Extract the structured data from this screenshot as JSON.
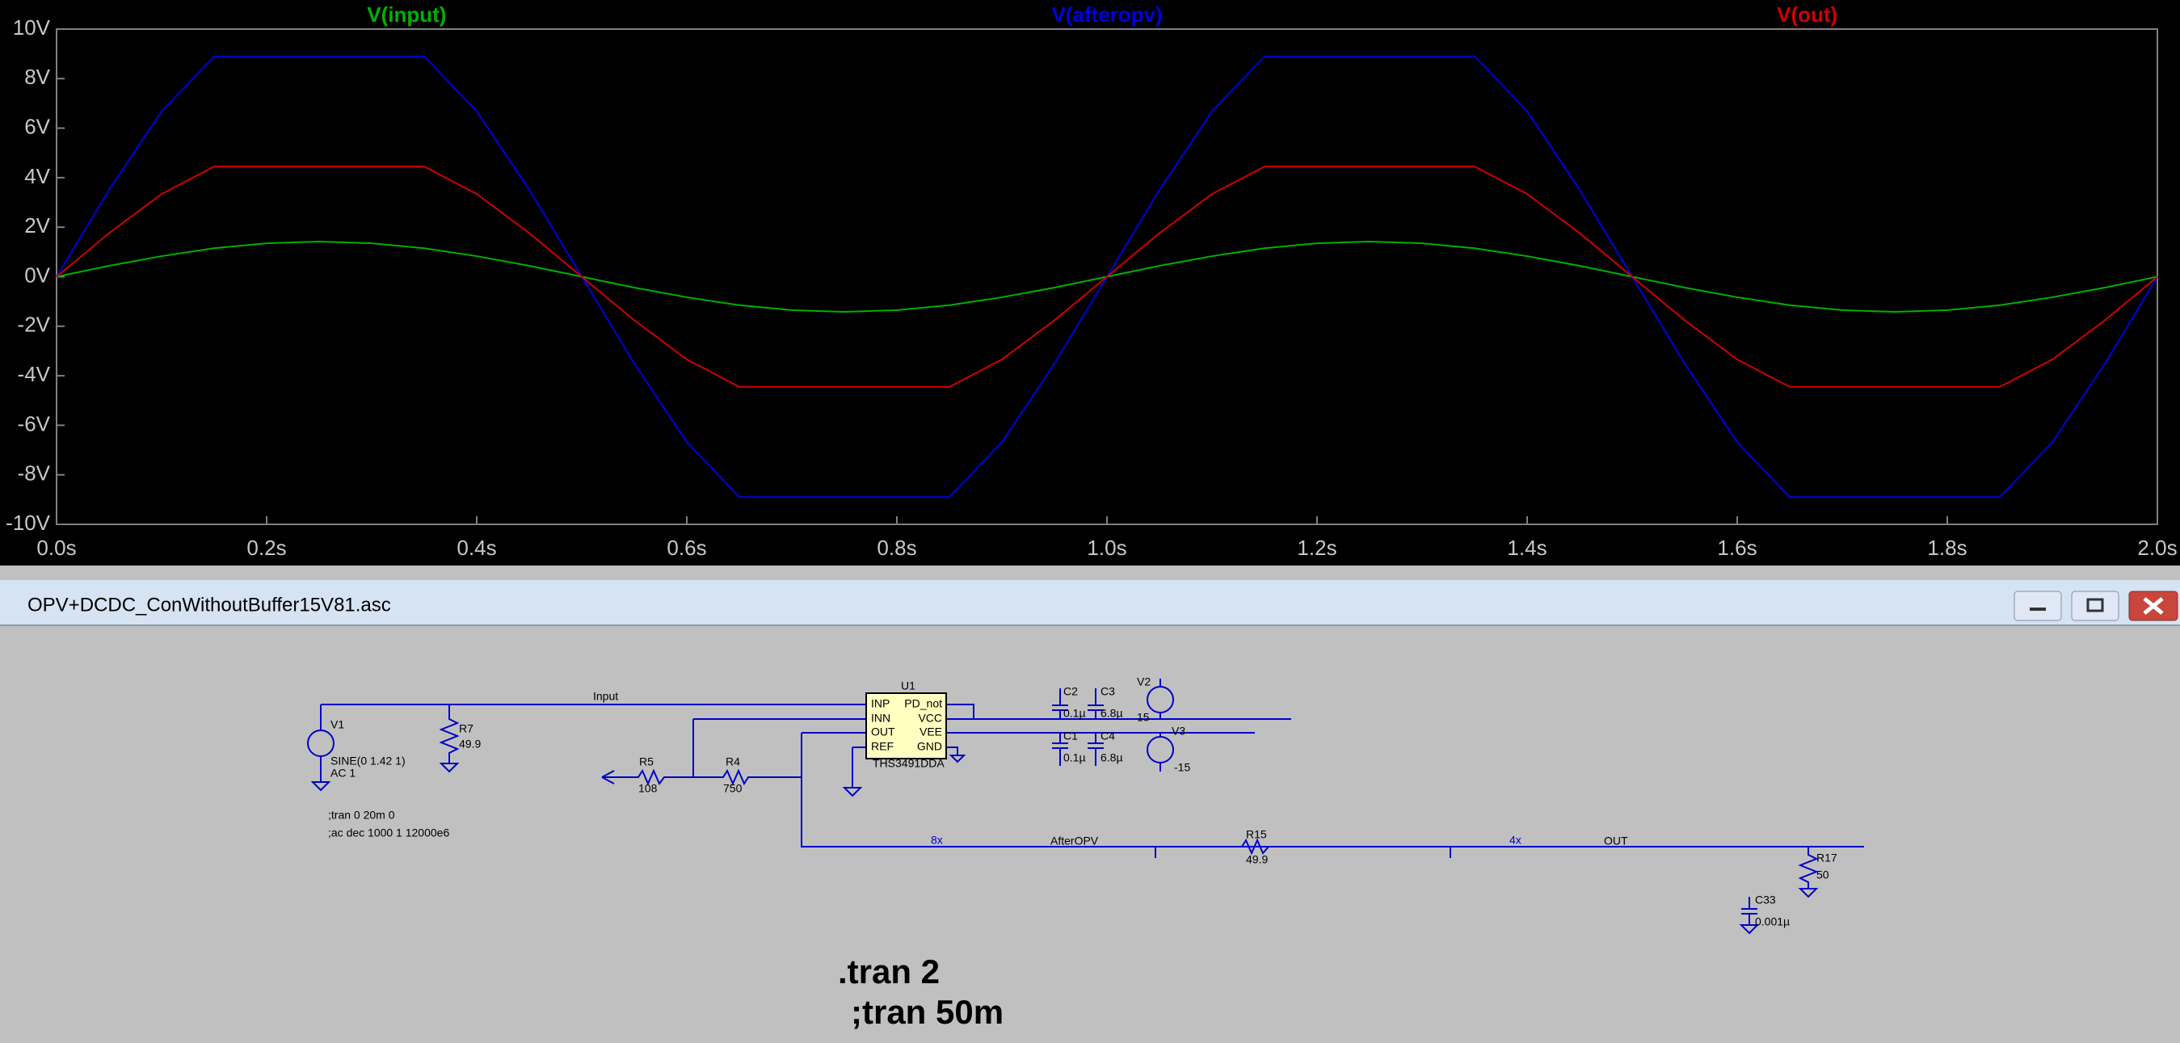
{
  "chart_data": {
    "type": "line",
    "x": [
      0,
      0.05,
      0.1,
      0.15,
      0.2,
      0.25,
      0.3,
      0.35,
      0.4,
      0.45,
      0.5,
      0.55,
      0.6,
      0.65,
      0.7,
      0.75,
      0.8,
      0.85,
      0.9,
      0.95,
      1,
      1.05,
      1.1,
      1.15,
      1.2,
      1.25,
      1.3,
      1.35,
      1.4,
      1.45,
      1.5,
      1.55,
      1.6,
      1.65,
      1.7,
      1.75,
      1.8,
      1.85,
      1.9,
      1.95,
      2
    ],
    "series": [
      {
        "name": "V(input)",
        "color": "#00b000",
        "values": [
          0,
          0.44,
          0.83,
          1.15,
          1.35,
          1.42,
          1.35,
          1.15,
          0.83,
          0.44,
          0,
          -0.44,
          -0.83,
          -1.15,
          -1.35,
          -1.42,
          -1.35,
          -1.15,
          -0.83,
          -0.44,
          0,
          0.44,
          0.83,
          1.15,
          1.35,
          1.42,
          1.35,
          1.15,
          0.83,
          0.44,
          0,
          -0.44,
          -0.83,
          -1.15,
          -1.35,
          -1.42,
          -1.35,
          -1.15,
          -0.83,
          -0.44,
          0
        ]
      },
      {
        "name": "V(afteropv)",
        "color": "#0000e0",
        "values": [
          0,
          3.51,
          6.68,
          8.9,
          8.9,
          8.9,
          8.9,
          8.9,
          6.68,
          3.51,
          0,
          -3.51,
          -6.68,
          -8.9,
          -8.9,
          -8.9,
          -8.9,
          -8.9,
          -6.68,
          -3.51,
          0,
          3.51,
          6.68,
          8.9,
          8.9,
          8.9,
          8.9,
          8.9,
          6.68,
          3.51,
          0,
          -3.51,
          -6.68,
          -8.9,
          -8.9,
          -8.9,
          -8.9,
          -8.9,
          -6.68,
          -3.51,
          0
        ]
      },
      {
        "name": "V(out)",
        "color": "#d00000",
        "values": [
          0,
          1.76,
          3.34,
          4.45,
          4.45,
          4.45,
          4.45,
          4.45,
          3.34,
          1.76,
          0,
          -1.76,
          -3.34,
          -4.45,
          -4.45,
          -4.45,
          -4.45,
          -4.45,
          -3.34,
          -1.76,
          0,
          1.76,
          3.34,
          4.45,
          4.45,
          4.45,
          4.45,
          4.45,
          3.34,
          1.76,
          0,
          -1.76,
          -3.34,
          -4.45,
          -4.45,
          -4.45,
          -4.45,
          -4.45,
          -3.34,
          -1.76,
          0
        ]
      }
    ],
    "xlim": [
      0,
      2
    ],
    "ylim": [
      -10,
      10
    ],
    "xticks": [
      {
        "value": 0,
        "label": "0.0s"
      },
      {
        "value": 0.2,
        "label": "0.2s"
      },
      {
        "value": 0.4,
        "label": "0.4s"
      },
      {
        "value": 0.6,
        "label": "0.6s"
      },
      {
        "value": 0.8,
        "label": "0.8s"
      },
      {
        "value": 1,
        "label": "1.0s"
      },
      {
        "value": 1.2,
        "label": "1.2s"
      },
      {
        "value": 1.4,
        "label": "1.4s"
      },
      {
        "value": 1.6,
        "label": "1.6s"
      },
      {
        "value": 1.8,
        "label": "1.8s"
      },
      {
        "value": 2,
        "label": "2.0s"
      }
    ],
    "yticks": [
      {
        "value": -10,
        "label": "-10V"
      },
      {
        "value": -8,
        "label": "-8V"
      },
      {
        "value": -6,
        "label": "-6V"
      },
      {
        "value": -4,
        "label": "-4V"
      },
      {
        "value": -2,
        "label": "-2V"
      },
      {
        "value": 0,
        "label": "0V"
      },
      {
        "value": 2,
        "label": "2V"
      },
      {
        "value": 4,
        "label": "4V"
      },
      {
        "value": 6,
        "label": "6V"
      },
      {
        "value": 8,
        "label": "8V"
      },
      {
        "value": 10,
        "label": "10V"
      }
    ],
    "grid": false
  },
  "window": {
    "title": "OPV+DCDC_ConWithoutBuffer15V81.asc"
  },
  "schematic": {
    "labels": [
      "Input",
      "V1",
      "SINE(0 1.42 1)",
      "AC 1",
      "R7",
      "49.9",
      ";tran 0 20m 0",
      ";ac dec 1000 1 12000e6",
      "U1",
      "INP",
      "INN",
      "OUT",
      "REF",
      "PD_not",
      "VCC",
      "VEE",
      "GND",
      "THS3491DDA",
      "R5",
      "108",
      "R4",
      "750",
      "C2",
      "0.1µ",
      "C3",
      "6.8µ",
      "C1",
      "0.1µ",
      "C4",
      "6.8µ",
      "V2",
      "15",
      "V3",
      "-15",
      "8x",
      "AfterOPV",
      "R15",
      "49.9",
      "4x",
      "OUT",
      "R17",
      "50",
      "C33",
      "0.001µ",
      ".tran 2",
      ";tran 50m"
    ]
  }
}
